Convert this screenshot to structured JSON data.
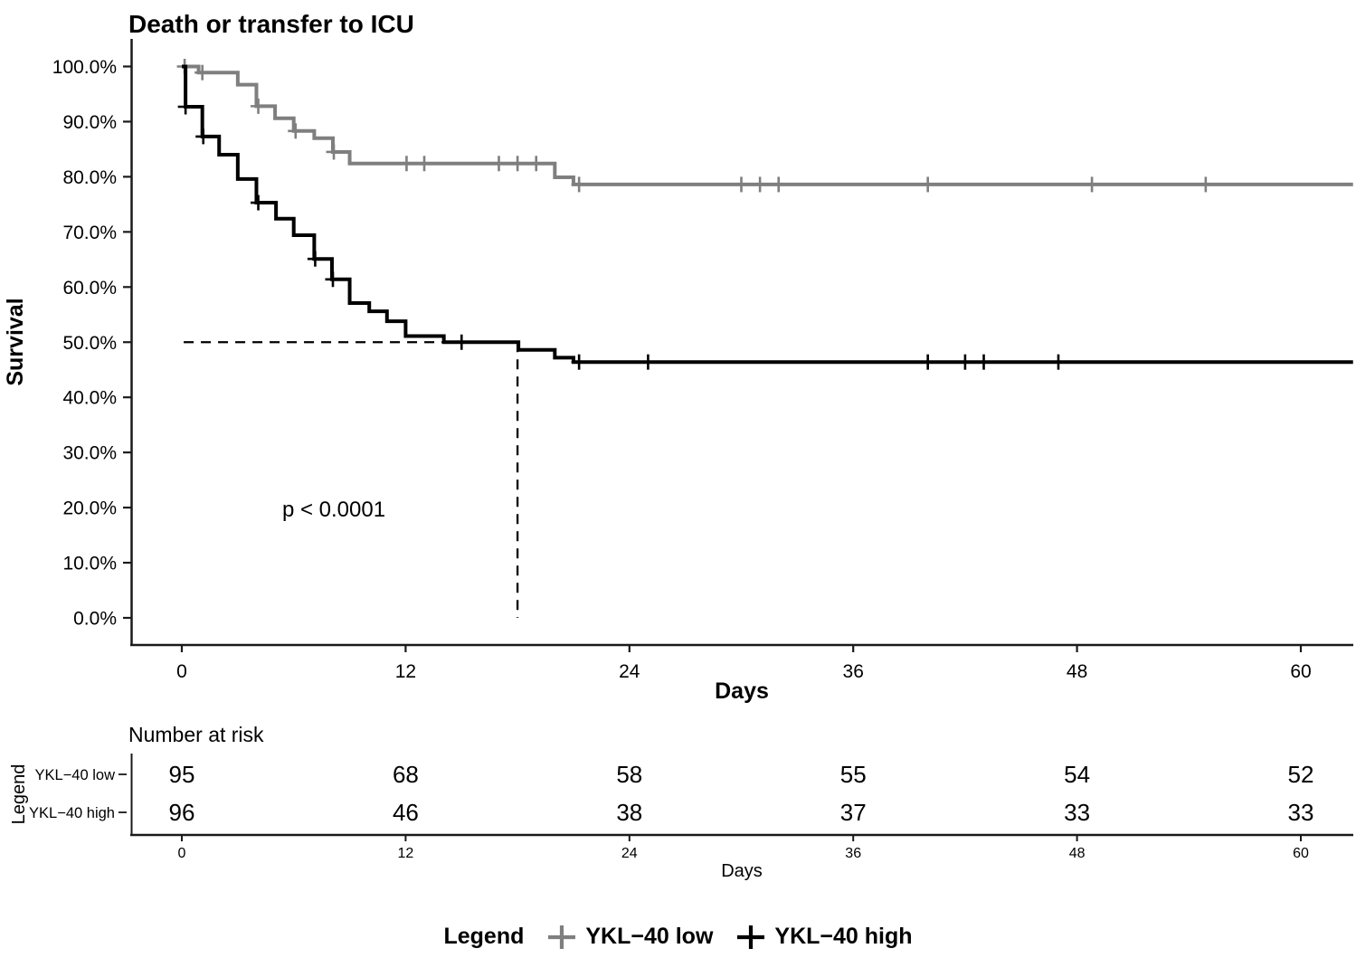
{
  "figure": {
    "background": "#FFFFFF"
  },
  "chart_data": {
    "type": "line",
    "variant": "kaplan-meier-step",
    "title": "Death or transfer to ICU",
    "xlabel": "Days",
    "ylabel": "Survival",
    "grid": "off",
    "legend_position": "bottom",
    "ylim_pct": [
      0,
      100
    ],
    "xlim_days": [
      0,
      62.8
    ],
    "x_ticks": {
      "values": [
        0,
        12,
        24,
        36,
        48,
        60
      ],
      "labels": [
        "0",
        "12",
        "24",
        "36",
        "48",
        "60"
      ]
    },
    "y_ticks": {
      "values": [
        0,
        10,
        20,
        30,
        40,
        50,
        60,
        70,
        80,
        90,
        100
      ],
      "labels": [
        "0.0%",
        "10.0%",
        "20.0%",
        "30.0%",
        "40.0%",
        "50.0%",
        "60.0%",
        "70.0%",
        "80.0%",
        "90.0%",
        "100.0%"
      ]
    },
    "pvalue_label": "p < 0.0001",
    "median_reference": {
      "day": 18.0,
      "survival_pct": 50
    },
    "colors": {
      "low": "#7F7F7F",
      "high": "#000000",
      "axis": "#1a1a1a",
      "risk_tick_labels": "#666666"
    },
    "series": [
      {
        "name": "YKL−40 low",
        "color": "#7F7F7F",
        "start_pct": 100,
        "end_day": 62.8,
        "drops": [
          [
            0.9,
            98.9
          ],
          [
            3.0,
            96.7
          ],
          [
            4.0,
            92.8
          ],
          [
            5.0,
            90.6
          ],
          [
            6.0,
            88.3
          ],
          [
            7.1,
            87.0
          ],
          [
            8.1,
            84.5
          ],
          [
            9.0,
            82.4
          ],
          [
            20.0,
            79.9
          ],
          [
            21.0,
            78.6
          ]
        ],
        "censors": [
          [
            0.15,
            100
          ],
          [
            1.1,
            98.9
          ],
          [
            4.1,
            92.8
          ],
          [
            6.1,
            88.3
          ],
          [
            8.15,
            84.5
          ],
          [
            12.05,
            82.4
          ],
          [
            13.0,
            82.4
          ],
          [
            17.0,
            82.4
          ],
          [
            18.0,
            82.4
          ],
          [
            19.0,
            82.4
          ],
          [
            21.3,
            78.6
          ],
          [
            30.0,
            78.6
          ],
          [
            31.0,
            78.6
          ],
          [
            32.0,
            78.6
          ],
          [
            40.0,
            78.6
          ],
          [
            48.8,
            78.6
          ],
          [
            54.9,
            78.6
          ]
        ]
      },
      {
        "name": "YKL−40 high",
        "color": "#000000",
        "start_pct": 100,
        "end_day": 62.8,
        "drops": [
          [
            0.2,
            92.7
          ],
          [
            1.1,
            87.3
          ],
          [
            2.0,
            84.0
          ],
          [
            3.0,
            79.6
          ],
          [
            4.0,
            75.3
          ],
          [
            5.05,
            72.4
          ],
          [
            6.0,
            69.4
          ],
          [
            7.1,
            65.1
          ],
          [
            8.05,
            61.4
          ],
          [
            9.0,
            57.1
          ],
          [
            10.05,
            55.6
          ],
          [
            11.0,
            53.8
          ],
          [
            12.0,
            51.1
          ],
          [
            14.05,
            50.0
          ],
          [
            18.05,
            48.6
          ],
          [
            20.0,
            47.2
          ],
          [
            21.0,
            46.4
          ]
        ],
        "censors": [
          [
            0.2,
            92.7
          ],
          [
            1.15,
            87.3
          ],
          [
            4.1,
            75.3
          ],
          [
            7.15,
            65.1
          ],
          [
            8.1,
            61.4
          ],
          [
            15.0,
            50.0
          ],
          [
            21.3,
            46.4
          ],
          [
            25.0,
            46.4
          ],
          [
            40.0,
            46.4
          ],
          [
            42.0,
            46.4
          ],
          [
            43.0,
            46.4
          ],
          [
            47.0,
            46.4
          ]
        ]
      }
    ],
    "risk_table": {
      "title": "Number at risk",
      "ylabel": "Legend",
      "xlabel": "Days",
      "timepoints": [
        0,
        12,
        24,
        36,
        48,
        60
      ],
      "tick_labels": [
        "0",
        "12",
        "24",
        "36",
        "48",
        "60"
      ],
      "rows": [
        {
          "label": "YKL−40 low",
          "color": "#7F7F7F",
          "counts": [
            95,
            68,
            58,
            55,
            54,
            52
          ]
        },
        {
          "label": "YKL−40 high",
          "color": "#000000",
          "counts": [
            96,
            46,
            38,
            37,
            33,
            33
          ]
        }
      ]
    },
    "legend": {
      "title": "Legend",
      "items": [
        {
          "label": "YKL−40 low",
          "color": "#7F7F7F",
          "marker": "censor-plus"
        },
        {
          "label": "YKL−40 high",
          "color": "#000000",
          "marker": "censor-plus"
        }
      ]
    }
  }
}
